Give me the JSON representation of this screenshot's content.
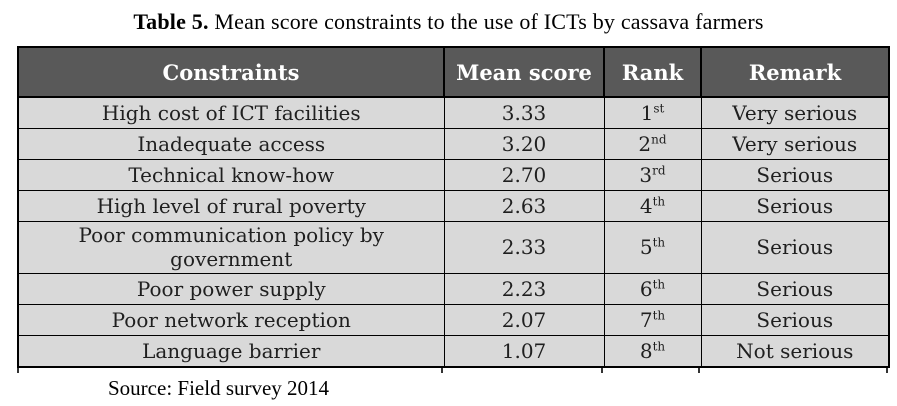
{
  "title": {
    "label": "Table 5.",
    "text": " Mean score constraints to the use of ICTs by cassava farmers"
  },
  "table": {
    "headers": [
      "Constraints",
      "Mean score",
      "Rank",
      "Remark"
    ],
    "rows": [
      {
        "constraint": "High cost of ICT facilities",
        "mean_score": "3.33",
        "rank": "1",
        "rank_suffix": "st",
        "remark": "Very serious"
      },
      {
        "constraint": "Inadequate access",
        "mean_score": "3.20",
        "rank": "2",
        "rank_suffix": "nd",
        "remark": "Very serious"
      },
      {
        "constraint": "Technical know-how",
        "mean_score": "2.70",
        "rank": "3",
        "rank_suffix": "rd",
        "remark": "Serious"
      },
      {
        "constraint": "High level of rural poverty",
        "mean_score": "2.63",
        "rank": "4",
        "rank_suffix": "th",
        "remark": "Serious"
      },
      {
        "constraint": "Poor communication policy by government",
        "mean_score": "2.33",
        "rank": "5",
        "rank_suffix": "th",
        "remark": "Serious"
      },
      {
        "constraint": "Poor power supply",
        "mean_score": "2.23",
        "rank": "6",
        "rank_suffix": "th",
        "remark": "Serious"
      },
      {
        "constraint": "Poor network reception",
        "mean_score": "2.07",
        "rank": "7",
        "rank_suffix": "th",
        "remark": "Serious"
      },
      {
        "constraint": "Language barrier",
        "mean_score": "1.07",
        "rank": "8",
        "rank_suffix": "th",
        "remark": "Not serious"
      }
    ]
  },
  "source_note": "Source: Field survey 2014",
  "colors": {
    "header_bg": "#595959",
    "header_text": "#ffffff",
    "row_bg": "#d9d9d9",
    "border": "#000000",
    "body_text": "#1f1f1f"
  }
}
